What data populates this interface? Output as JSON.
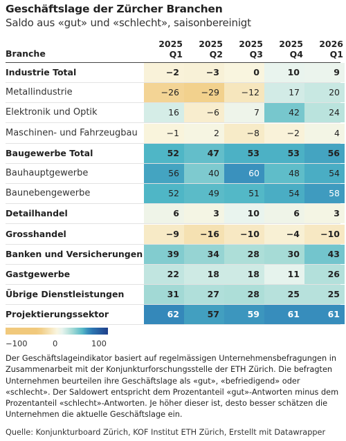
{
  "title": "Geschäftslage der Zürcher Branchen",
  "subtitle": "Saldo aus «gut» und «schlecht», saisonbereinigt",
  "header": {
    "branche": "Branche",
    "columns": [
      {
        "year": "2025",
        "quarter": "Q1"
      },
      {
        "year": "2025",
        "quarter": "Q2"
      },
      {
        "year": "2025",
        "quarter": "Q3"
      },
      {
        "year": "2025",
        "quarter": "Q4"
      },
      {
        "year": "2026",
        "quarter": "Q1"
      }
    ]
  },
  "chart_data": {
    "type": "heatmap",
    "categories": [
      "2025 Q1",
      "2025 Q2",
      "2025 Q3",
      "2025 Q4",
      "2026 Q1"
    ],
    "rows": [
      {
        "label": "Industrie Total",
        "bold": true,
        "values": [
          -2,
          -3,
          0,
          10,
          9
        ],
        "display": [
          "−2",
          "−3",
          "0",
          "10",
          "9"
        ]
      },
      {
        "label": "Metallindustrie",
        "bold": false,
        "values": [
          -26,
          -29,
          -12,
          17,
          20
        ],
        "display": [
          "−26",
          "−29",
          "−12",
          "17",
          "20"
        ]
      },
      {
        "label": "Elektronik und Optik",
        "bold": false,
        "values": [
          16,
          -6,
          7,
          42,
          24
        ],
        "display": [
          "16",
          "−6",
          "7",
          "42",
          "24"
        ]
      },
      {
        "label": "Maschinen- und Fahrzeugbau",
        "bold": false,
        "values": [
          -1,
          2,
          -8,
          -2,
          4
        ],
        "display": [
          "−1",
          "2",
          "−8",
          "−2",
          "4"
        ]
      },
      {
        "label": "Baugewerbe Total",
        "bold": true,
        "values": [
          52,
          47,
          53,
          53,
          56
        ],
        "display": [
          "52",
          "47",
          "53",
          "53",
          "56"
        ]
      },
      {
        "label": "Bauhauptgewerbe",
        "bold": false,
        "values": [
          56,
          40,
          60,
          48,
          54
        ],
        "display": [
          "56",
          "40",
          "60",
          "48",
          "54"
        ]
      },
      {
        "label": "Baunebengewerbe",
        "bold": false,
        "values": [
          52,
          49,
          51,
          54,
          58
        ],
        "display": [
          "52",
          "49",
          "51",
          "54",
          "58"
        ]
      },
      {
        "label": "Detailhandel",
        "bold": true,
        "values": [
          6,
          3,
          10,
          6,
          3
        ],
        "display": [
          "6",
          "3",
          "10",
          "6",
          "3"
        ]
      },
      {
        "label": "Grosshandel",
        "bold": true,
        "values": [
          -9,
          -16,
          -10,
          -4,
          -10
        ],
        "display": [
          "−9",
          "−16",
          "−10",
          "−4",
          "−10"
        ]
      },
      {
        "label": "Banken und Versicherungen",
        "bold": true,
        "values": [
          39,
          34,
          28,
          30,
          43
        ],
        "display": [
          "39",
          "34",
          "28",
          "30",
          "43"
        ]
      },
      {
        "label": "Gastgewerbe",
        "bold": true,
        "values": [
          22,
          18,
          18,
          11,
          26
        ],
        "display": [
          "22",
          "18",
          "18",
          "11",
          "26"
        ]
      },
      {
        "label": "Übrige Dienstleistungen",
        "bold": true,
        "values": [
          31,
          27,
          28,
          25,
          25
        ],
        "display": [
          "31",
          "27",
          "28",
          "25",
          "25"
        ]
      },
      {
        "label": "Projektierungssektor",
        "bold": true,
        "values": [
          62,
          57,
          59,
          61,
          61
        ],
        "display": [
          "62",
          "57",
          "59",
          "61",
          "61"
        ]
      }
    ],
    "color_scale": {
      "min": -100,
      "mid": 0,
      "max": 100,
      "colors": [
        "#f1c97c",
        "#f9f5df",
        "#e9f4ee",
        "#a6dbd6",
        "#4fb6c6",
        "#2f7fb8",
        "#1f3f8a"
      ]
    }
  },
  "legend": {
    "min_label": "−100",
    "mid_label": "0",
    "max_label": "100"
  },
  "note": "Der Geschäftslageindikator basiert auf regelmässigen Unternehmensbefragungen in Zusammenarbeit mit der Konjunkturforschungsstelle der ETH Zürich. Die befragten Unternehmen beurteilen ihre Geschäftslage als «gut», «befriedigend» oder «schlecht». Der Saldowert entspricht dem Prozentanteil «gut»-Antworten minus dem Prozentanteil «schlecht»-Antworten. Je höher dieser ist, desto besser schätzen die Unternehmen die aktuelle Geschäftslage ein.",
  "source": "Quelle: Konjunkturboard Zürich, KOF Institut ETH Zürich, Erstellt mit Datawrapper"
}
